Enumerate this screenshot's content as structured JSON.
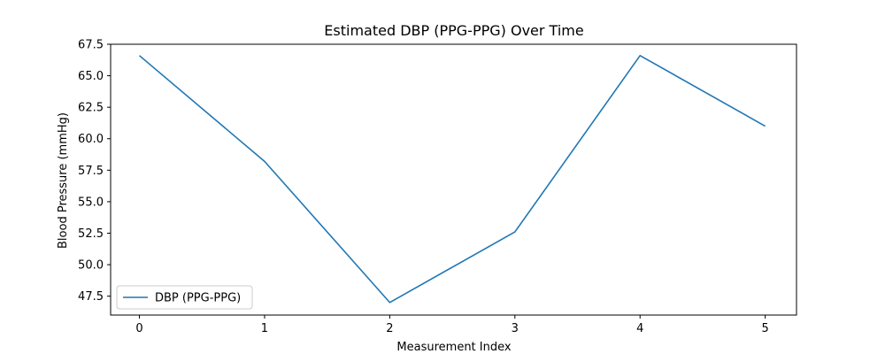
{
  "chart_data": {
    "type": "line",
    "title": "Estimated DBP (PPG-PPG) Over Time",
    "xlabel": "Measurement Index",
    "ylabel": "Blood Pressure (mmHg)",
    "xlim": [
      -0.23,
      5.25
    ],
    "ylim": [
      46.0,
      67.5
    ],
    "xticks": [
      0,
      1,
      2,
      3,
      4,
      5
    ],
    "yticks": [
      47.5,
      50.0,
      52.5,
      55.0,
      57.5,
      60.0,
      62.5,
      65.0,
      67.5
    ],
    "ytick_labels": [
      "47.5",
      "50.0",
      "52.5",
      "55.0",
      "57.5",
      "60.0",
      "62.5",
      "65.0",
      "67.5"
    ],
    "grid": false,
    "legend_position": "lower-left",
    "series": [
      {
        "name": "DBP (PPG-PPG)",
        "color": "#1f77b4",
        "x": [
          0,
          1,
          2,
          3,
          4,
          5
        ],
        "values": [
          66.6,
          58.2,
          47.0,
          52.6,
          66.6,
          61.0
        ]
      }
    ]
  }
}
